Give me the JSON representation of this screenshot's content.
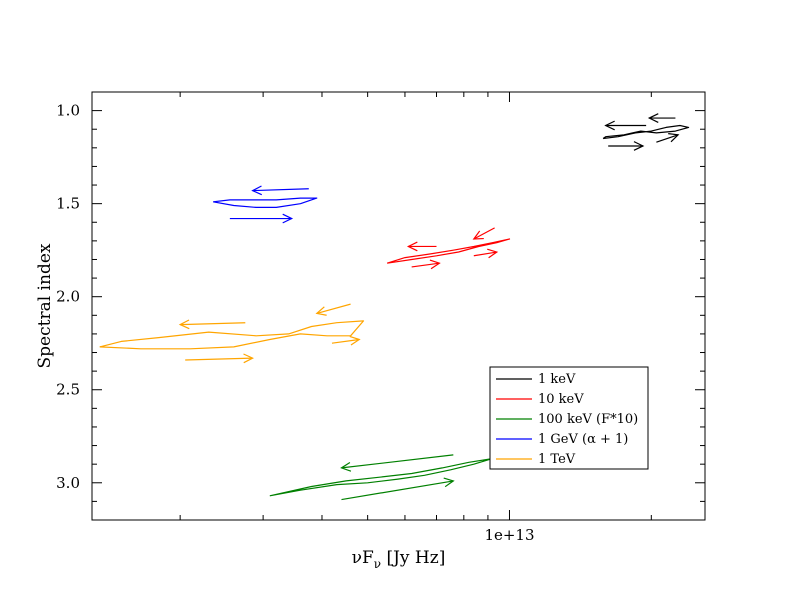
{
  "chart_data": {
    "type": "line",
    "xlabel": "νF",
    "xlabel_sub": "ν",
    "xlabel_unit": " [Jy Hz]",
    "ylabel": "Spectral index",
    "x_scale": "log",
    "xlim": [
      1300000000000.0,
      26000000000000.0
    ],
    "ylim": [
      3.2,
      0.9
    ],
    "y_inverted": true,
    "x_ticks": [
      {
        "value": 10000000000000.0,
        "label": "1e+13"
      }
    ],
    "y_ticks": [
      {
        "value": 1.0,
        "label": "1.0"
      },
      {
        "value": 1.5,
        "label": "1.5"
      },
      {
        "value": 2.0,
        "label": "2.0"
      },
      {
        "value": 2.5,
        "label": "2.5"
      },
      {
        "value": 3.0,
        "label": "3.0"
      }
    ],
    "legend_position": "bottom-right",
    "grid": false,
    "series": [
      {
        "name": "1 keV",
        "color": "#000000",
        "x": [
          15800000000000.0,
          17000000000000.0,
          18500000000000.0,
          20000000000000.0,
          21500000000000.0,
          23000000000000.0,
          24000000000000.0,
          22500000000000.0,
          20500000000000.0,
          19000000000000.0,
          17500000000000.0,
          16000000000000.0,
          15800000000000.0
        ],
        "y": [
          1.15,
          1.14,
          1.12,
          1.11,
          1.09,
          1.08,
          1.09,
          1.11,
          1.12,
          1.11,
          1.13,
          1.14,
          1.15
        ],
        "arrows": [
          {
            "from": [
              19500000000000.0,
              1.08
            ],
            "to": [
              16000000000000.0,
              1.08
            ]
          },
          {
            "from": [
              22500000000000.0,
              1.04
            ],
            "to": [
              19800000000000.0,
              1.04
            ]
          },
          {
            "from": [
              16200000000000.0,
              1.19
            ],
            "to": [
              19200000000000.0,
              1.19
            ]
          },
          {
            "from": [
              20500000000000.0,
              1.17
            ],
            "to": [
              22800000000000.0,
              1.13
            ]
          }
        ]
      },
      {
        "name": "10 keV",
        "color": "#ff0000",
        "x": [
          5500000000000.0,
          6200000000000.0,
          7000000000000.0,
          7800000000000.0,
          8600000000000.0,
          9400000000000.0,
          10000000000000.0,
          9200000000000.0,
          8400000000000.0,
          7600000000000.0,
          6800000000000.0,
          6000000000000.0,
          5500000000000.0
        ],
        "y": [
          1.82,
          1.8,
          1.78,
          1.76,
          1.73,
          1.71,
          1.69,
          1.71,
          1.73,
          1.75,
          1.77,
          1.79,
          1.82
        ],
        "arrows": [
          {
            "from": [
              7000000000000.0,
              1.73
            ],
            "to": [
              6100000000000.0,
              1.73
            ]
          },
          {
            "from": [
              9300000000000.0,
              1.63
            ],
            "to": [
              8400000000000.0,
              1.69
            ]
          },
          {
            "from": [
              6200000000000.0,
              1.84
            ],
            "to": [
              7100000000000.0,
              1.82
            ]
          },
          {
            "from": [
              8400000000000.0,
              1.78
            ],
            "to": [
              9400000000000.0,
              1.76
            ]
          }
        ]
      },
      {
        "name": "100 keV (F*10)",
        "color": "#008000",
        "x": [
          3100000000000.0,
          3600000000000.0,
          4300000000000.0,
          5000000000000.0,
          5800000000000.0,
          6600000000000.0,
          7500000000000.0,
          8400000000000.0,
          9200000000000.0,
          8200000000000.0,
          7200000000000.0,
          6200000000000.0,
          5300000000000.0,
          4500000000000.0,
          3800000000000.0,
          3100000000000.0
        ],
        "y": [
          3.07,
          3.04,
          3.01,
          3.0,
          2.98,
          2.96,
          2.93,
          2.9,
          2.87,
          2.89,
          2.92,
          2.95,
          2.97,
          2.99,
          3.02,
          3.07
        ],
        "arrows": [
          {
            "from": [
              7600000000000.0,
              2.85
            ],
            "to": [
              4400000000000.0,
              2.92
            ]
          },
          {
            "from": [
              4400000000000.0,
              3.09
            ],
            "to": [
              7600000000000.0,
              2.99
            ]
          }
        ]
      },
      {
        "name": "1 GeV (α + 1)",
        "color": "#0000ff",
        "x": [
          2350000000000.0,
          2600000000000.0,
          2900000000000.0,
          3200000000000.0,
          3600000000000.0,
          3900000000000.0,
          3600000000000.0,
          3200000000000.0,
          2850000000000.0,
          2550000000000.0,
          2350000000000.0
        ],
        "y": [
          1.49,
          1.51,
          1.52,
          1.52,
          1.5,
          1.47,
          1.47,
          1.48,
          1.48,
          1.48,
          1.49
        ],
        "arrows": [
          {
            "from": [
              3750000000000.0,
              1.42
            ],
            "to": [
              2850000000000.0,
              1.43
            ]
          },
          {
            "from": [
              2550000000000.0,
              1.58
            ],
            "to": [
              3450000000000.0,
              1.58
            ]
          }
        ]
      },
      {
        "name": "1 TeV",
        "color": "#ffa500",
        "x": [
          1350000000000.0,
          1650000000000.0,
          2100000000000.0,
          2600000000000.0,
          3100000000000.0,
          3600000000000.0,
          4100000000000.0,
          4600000000000.0,
          4900000000000.0,
          4300000000000.0,
          3800000000000.0,
          3400000000000.0,
          2900000000000.0,
          2300000000000.0,
          1800000000000.0,
          1500000000000.0,
          1350000000000.0
        ],
        "y": [
          2.27,
          2.28,
          2.28,
          2.27,
          2.23,
          2.2,
          2.21,
          2.21,
          2.13,
          2.14,
          2.16,
          2.2,
          2.21,
          2.19,
          2.22,
          2.24,
          2.27
        ],
        "arrows": [
          {
            "from": [
              2750000000000.0,
              2.14
            ],
            "to": [
              2000000000000.0,
              2.15
            ]
          },
          {
            "from": [
              4600000000000.0,
              2.04
            ],
            "to": [
              3900000000000.0,
              2.09
            ]
          },
          {
            "from": [
              2050000000000.0,
              2.34
            ],
            "to": [
              2850000000000.0,
              2.33
            ]
          },
          {
            "from": [
              4200000000000.0,
              2.25
            ],
            "to": [
              4800000000000.0,
              2.23
            ]
          }
        ]
      }
    ]
  }
}
